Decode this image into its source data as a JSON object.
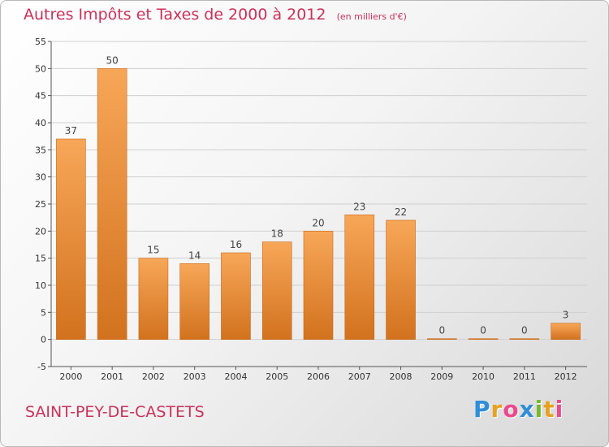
{
  "header": {
    "title": "Autres Impôts et Taxes de 2000 à 2012",
    "subtitle": "(en milliers d'€)"
  },
  "footer": {
    "commune": "SAINT-PEY-DE-CASTETS",
    "logo_letters": [
      "P",
      "r",
      "o",
      "x",
      "i",
      "t",
      "i"
    ],
    "logo_colors": [
      "#2f8ed8",
      "#e8a020",
      "#ea4a8c",
      "#2f8ed8",
      "#78b82a",
      "#e8a020",
      "#ea4a8c"
    ]
  },
  "chart_data": {
    "type": "bar",
    "title": "Autres Impôts et Taxes de 2000 à 2012",
    "subtitle": "(en milliers d'€)",
    "categories": [
      "2000",
      "2001",
      "2002",
      "2003",
      "2004",
      "2005",
      "2006",
      "2007",
      "2008",
      "2009",
      "2010",
      "2011",
      "2012"
    ],
    "values": [
      37,
      50,
      15,
      14,
      16,
      18,
      20,
      23,
      22,
      0,
      0,
      0,
      3
    ],
    "data_labels": [
      "37",
      "50",
      "15",
      "14",
      "16",
      "18",
      "20",
      "23",
      "22",
      "0",
      "0",
      "0",
      "3"
    ],
    "yticks": [
      "-5",
      "0",
      "5",
      "10",
      "15",
      "20",
      "25",
      "30",
      "35",
      "40",
      "45",
      "50",
      "55"
    ],
    "ylim": [
      -5,
      55
    ],
    "grid": true,
    "bar_color_top": "#f7a758",
    "bar_color_bottom": "#d2721e"
  }
}
